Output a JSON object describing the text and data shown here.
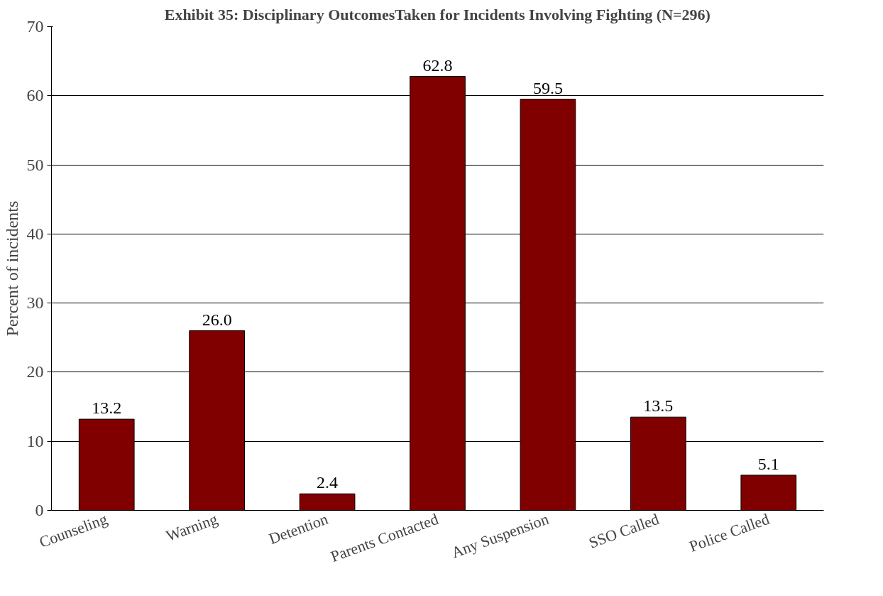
{
  "chart_data": {
    "type": "bar",
    "title": "Exhibit 35: Disciplinary OutcomesTaken for Incidents Involving Fighting (N=296)",
    "ylabel": "Percent of incidents",
    "categories": [
      "Counseling",
      "Warning",
      "Detention",
      "Parents Contacted",
      "Any Suspension",
      "SSO Called",
      "Police Called"
    ],
    "values": [
      13.2,
      26.0,
      2.4,
      62.8,
      59.5,
      13.5,
      5.1
    ],
    "value_labels": [
      "13.2",
      "26.0",
      "2.4",
      "62.8",
      "59.5",
      "13.5",
      "5.1"
    ],
    "color": "#800000",
    "ylim": [
      0,
      70
    ],
    "yticks": [
      0,
      10,
      20,
      30,
      40,
      50,
      60,
      70
    ],
    "grid": "y"
  }
}
